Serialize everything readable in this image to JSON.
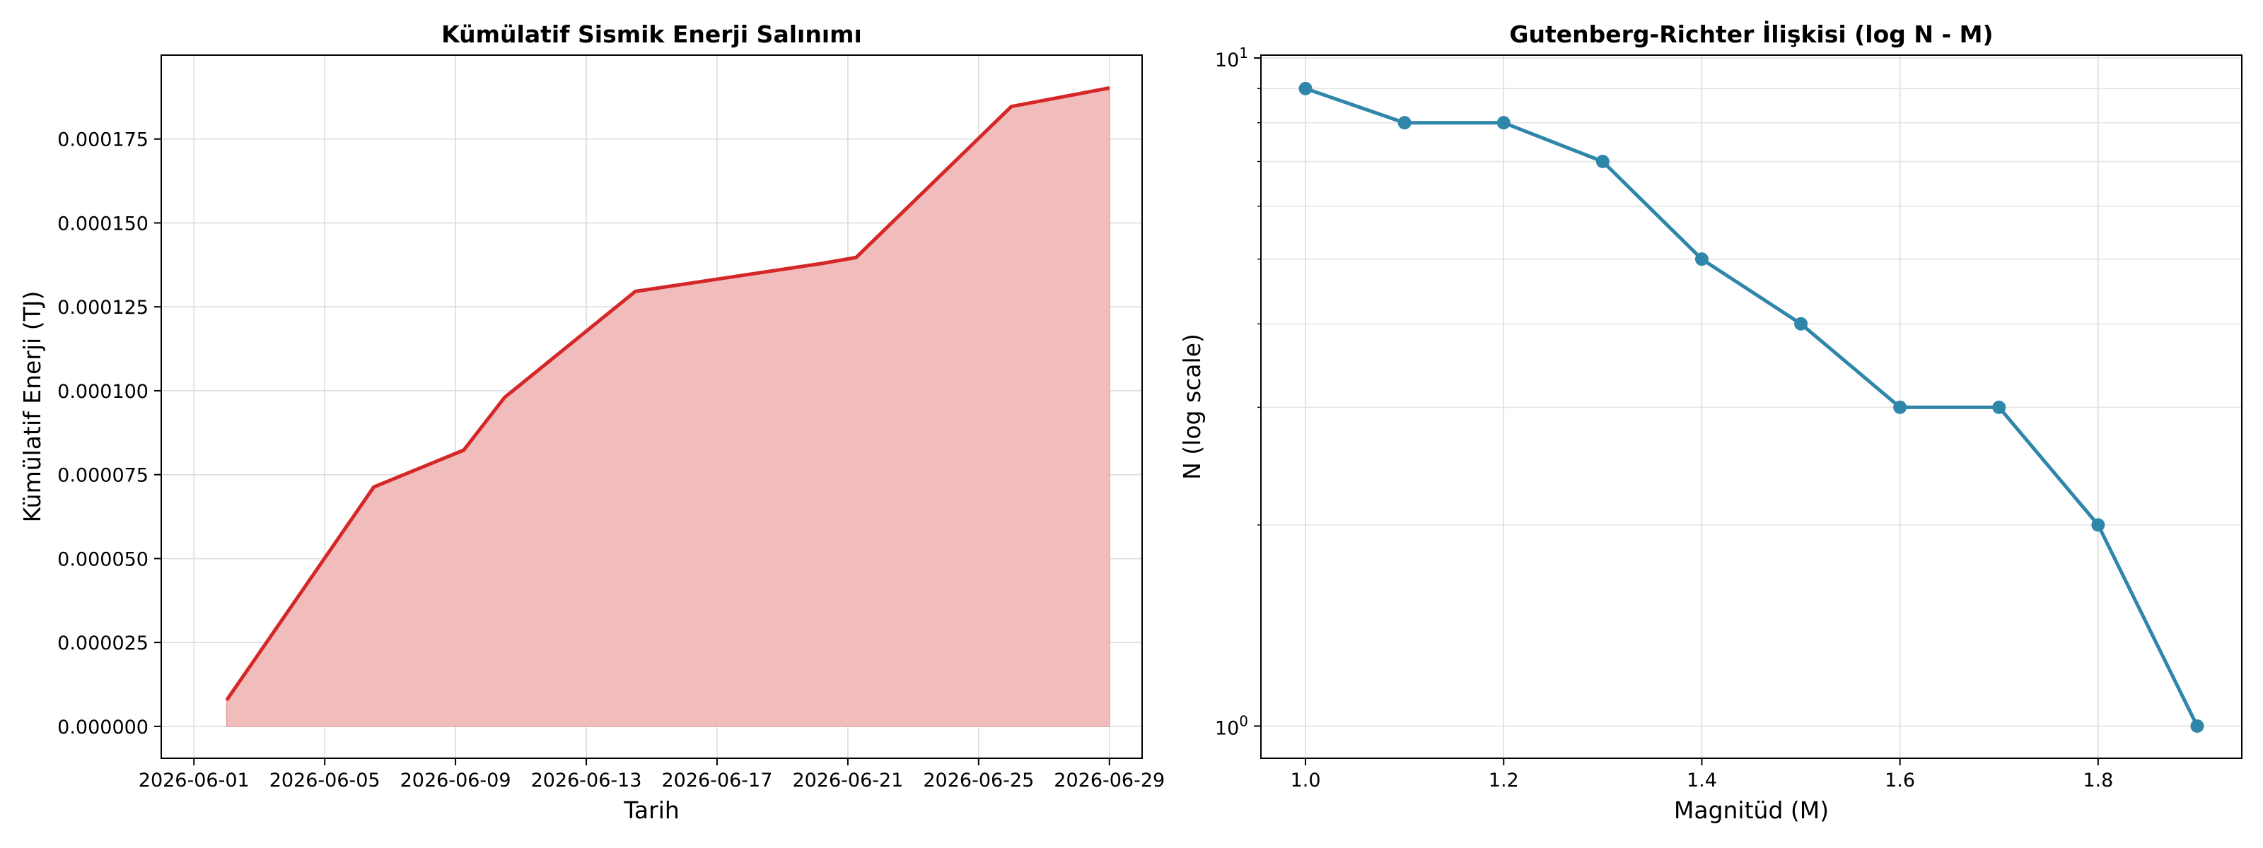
{
  "chart_data": [
    {
      "type": "area",
      "title": "Kümülatif Sismik Enerji Salınımı",
      "xlabel": "Tarih",
      "ylabel": "Kümülatif Enerji (TJ)",
      "grid": true,
      "colors": {
        "line": "#d62728",
        "fill": "#f0bcbc"
      },
      "x_ticks": [
        "2026-06-01",
        "2026-06-05",
        "2026-06-09",
        "2026-06-13",
        "2026-06-17",
        "2026-06-21",
        "2026-06-25",
        "2026-06-29"
      ],
      "y_ticks": [
        "0.000000",
        "0.000025",
        "0.000050",
        "0.000075",
        "0.000100",
        "0.000125",
        "0.000150",
        "0.000175"
      ],
      "xlim": [
        "2026-05-31",
        "2026-06-30"
      ],
      "ylim": [
        -9.5e-06,
        0.0002
      ],
      "series": [
        {
          "x": [
            "2026-06-02",
            "2026-06-06 12:00",
            "2026-06-09 06:00",
            "2026-06-10 12:00",
            "2026-06-14 12:00",
            "2026-06-20 06:00",
            "2026-06-21 06:00",
            "2026-06-26",
            "2026-06-29"
          ],
          "values": [
            7.8e-06,
            7.13e-05,
            8.23e-05,
            9.8e-05,
            0.0001296,
            0.000138,
            0.0001397,
            0.0001847,
            0.0001902
          ]
        }
      ]
    },
    {
      "type": "line",
      "title": "Gutenberg-Richter İlişkisi (log N - M)",
      "xlabel": "Magnitüd (M)",
      "ylabel": "N (log scale)",
      "yscale": "log",
      "grid": true,
      "colors": {
        "line": "#2e86ab"
      },
      "x_ticks": [
        "1.0",
        "1.2",
        "1.4",
        "1.6",
        "1.8"
      ],
      "y_ticks": [
        {
          "base": "10",
          "exp": "0"
        },
        {
          "base": "10",
          "exp": "1"
        }
      ],
      "xlim": [
        0.955,
        1.945
      ],
      "ylim": [
        0.895,
        10.1
      ],
      "series": [
        {
          "x": [
            1.0,
            1.1,
            1.2,
            1.3,
            1.4,
            1.5,
            1.6,
            1.7,
            1.8,
            1.9
          ],
          "values": [
            9,
            8,
            8,
            7,
            5,
            4,
            3,
            3,
            2,
            1
          ]
        }
      ]
    }
  ]
}
